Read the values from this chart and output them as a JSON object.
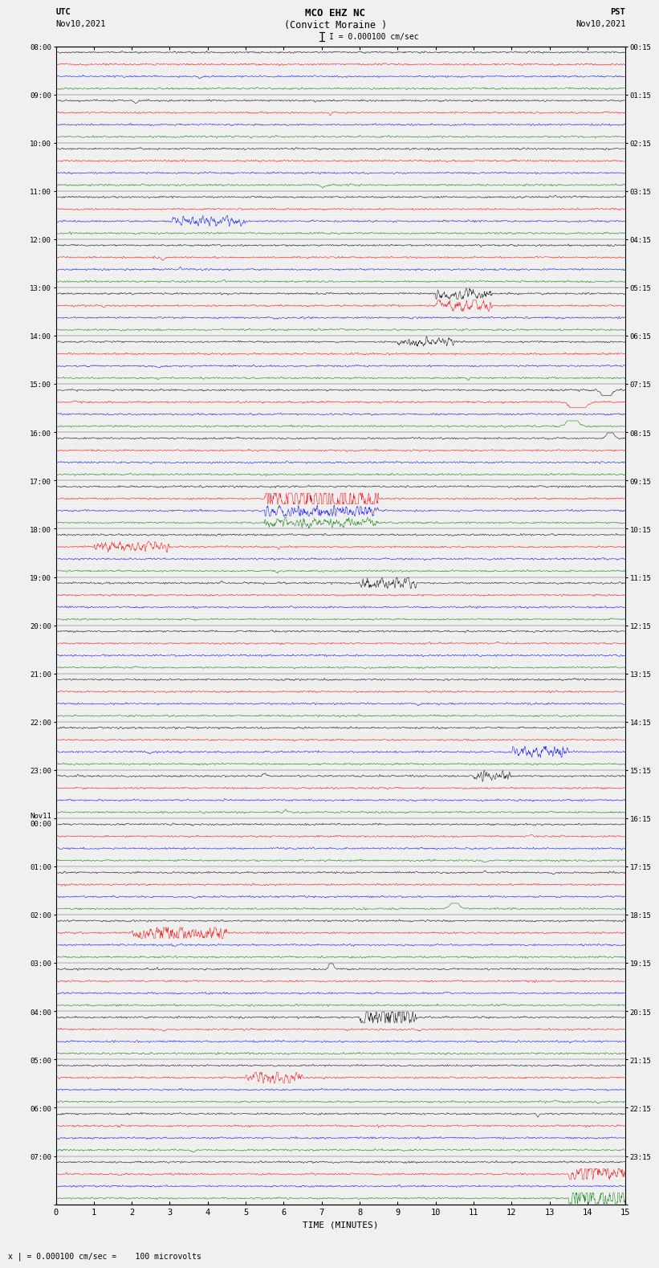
{
  "title_line1": "MCO EHZ NC",
  "title_line2": "(Convict Moraine )",
  "scale_label": "I = 0.000100 cm/sec",
  "bottom_label": "x | = 0.000100 cm/sec =    100 microvolts",
  "xlabel": "TIME (MINUTES)",
  "utc_label_line1": "UTC",
  "utc_label_line2": "Nov10,2021",
  "pst_label_line1": "PST",
  "pst_label_line2": "Nov10,2021",
  "left_times": [
    "08:00",
    "",
    "",
    "",
    "09:00",
    "",
    "",
    "",
    "10:00",
    "",
    "",
    "",
    "11:00",
    "",
    "",
    "",
    "12:00",
    "",
    "",
    "",
    "13:00",
    "",
    "",
    "",
    "14:00",
    "",
    "",
    "",
    "15:00",
    "",
    "",
    "",
    "16:00",
    "",
    "",
    "",
    "17:00",
    "",
    "",
    "",
    "18:00",
    "",
    "",
    "",
    "19:00",
    "",
    "",
    "",
    "20:00",
    "",
    "",
    "",
    "21:00",
    "",
    "",
    "",
    "22:00",
    "",
    "",
    "",
    "23:00",
    "",
    "",
    "",
    "Nov11\n00:00",
    "",
    "",
    "",
    "01:00",
    "",
    "",
    "",
    "02:00",
    "",
    "",
    "",
    "03:00",
    "",
    "",
    "",
    "04:00",
    "",
    "",
    "",
    "05:00",
    "",
    "",
    "",
    "06:00",
    "",
    "",
    "",
    "07:00",
    "",
    "",
    ""
  ],
  "right_times": [
    "00:15",
    "",
    "",
    "",
    "01:15",
    "",
    "",
    "",
    "02:15",
    "",
    "",
    "",
    "03:15",
    "",
    "",
    "",
    "04:15",
    "",
    "",
    "",
    "05:15",
    "",
    "",
    "",
    "06:15",
    "",
    "",
    "",
    "07:15",
    "",
    "",
    "",
    "08:15",
    "",
    "",
    "",
    "09:15",
    "",
    "",
    "",
    "10:15",
    "",
    "",
    "",
    "11:15",
    "",
    "",
    "",
    "12:15",
    "",
    "",
    "",
    "13:15",
    "",
    "",
    "",
    "14:15",
    "",
    "",
    "",
    "15:15",
    "",
    "",
    "",
    "16:15",
    "",
    "",
    "",
    "17:15",
    "",
    "",
    "",
    "18:15",
    "",
    "",
    "",
    "19:15",
    "",
    "",
    "",
    "20:15",
    "",
    "",
    "",
    "21:15",
    "",
    "",
    "",
    "22:15",
    "",
    "",
    "",
    "23:15",
    "",
    "",
    ""
  ],
  "trace_colors": [
    "black",
    "red",
    "blue",
    "green"
  ],
  "n_hours": 24,
  "traces_per_hour": 4,
  "xmin": 0,
  "xmax": 15,
  "bg_color": "#f0f0f0",
  "plot_bg_color": "#f0f0f0",
  "trace_lw": 0.35,
  "noise_amplitude": 0.06,
  "fig_width": 8.5,
  "fig_height": 16.13,
  "seed": 42,
  "special_events": [
    {
      "hour": 9,
      "cidx": 1,
      "t0": 5.5,
      "t1": 8.5,
      "amp": 1.8,
      "type": "burst"
    },
    {
      "hour": 9,
      "cidx": 2,
      "t0": 5.5,
      "t1": 8.5,
      "amp": 0.6,
      "type": "burst"
    },
    {
      "hour": 9,
      "cidx": 3,
      "t0": 5.5,
      "t1": 8.5,
      "amp": 0.4,
      "type": "burst"
    },
    {
      "hour": 7,
      "cidx": 3,
      "t0": 13.0,
      "t1": 14.2,
      "amp": 0.8,
      "type": "spike"
    },
    {
      "hour": 7,
      "cidx": 1,
      "t0": 13.0,
      "t1": 14.5,
      "amp": 1.2,
      "type": "spike"
    },
    {
      "hour": 7,
      "cidx": 0,
      "t0": 14.0,
      "t1": 15.0,
      "amp": 0.9,
      "type": "spike"
    },
    {
      "hour": 8,
      "cidx": 0,
      "t0": 14.2,
      "t1": 15.0,
      "amp": 0.7,
      "type": "spike"
    },
    {
      "hour": 5,
      "cidx": 0,
      "t0": 10.0,
      "t1": 11.5,
      "amp": 0.5,
      "type": "burst"
    },
    {
      "hour": 5,
      "cidx": 1,
      "t0": 10.0,
      "t1": 11.5,
      "amp": 0.5,
      "type": "burst"
    },
    {
      "hour": 11,
      "cidx": 0,
      "t0": 8.0,
      "t1": 9.5,
      "amp": 0.5,
      "type": "burst"
    },
    {
      "hour": 14,
      "cidx": 2,
      "t0": 12.0,
      "t1": 13.5,
      "amp": 0.6,
      "type": "burst"
    },
    {
      "hour": 17,
      "cidx": 3,
      "t0": 10.0,
      "t1": 11.0,
      "amp": 0.7,
      "type": "spike"
    },
    {
      "hour": 18,
      "cidx": 1,
      "t0": 2.0,
      "t1": 4.5,
      "amp": 0.8,
      "type": "burst"
    },
    {
      "hour": 20,
      "cidx": 0,
      "t0": 8.0,
      "t1": 9.5,
      "amp": 1.0,
      "type": "burst"
    },
    {
      "hour": 23,
      "cidx": 3,
      "t0": 13.5,
      "t1": 15.0,
      "amp": 1.2,
      "type": "burst"
    },
    {
      "hour": 23,
      "cidx": 1,
      "t0": 13.5,
      "t1": 15.0,
      "amp": 0.8,
      "type": "burst"
    },
    {
      "hour": 6,
      "cidx": 0,
      "t0": 9.0,
      "t1": 10.5,
      "amp": 0.4,
      "type": "burst"
    },
    {
      "hour": 15,
      "cidx": 0,
      "t0": 11.0,
      "t1": 12.0,
      "amp": 0.5,
      "type": "burst"
    },
    {
      "hour": 21,
      "cidx": 1,
      "t0": 5.0,
      "t1": 6.5,
      "amp": 0.6,
      "type": "burst"
    },
    {
      "hour": 3,
      "cidx": 2,
      "t0": 3.0,
      "t1": 5.0,
      "amp": 0.4,
      "type": "burst"
    },
    {
      "hour": 10,
      "cidx": 1,
      "t0": 1.0,
      "t1": 3.0,
      "amp": 0.5,
      "type": "burst"
    },
    {
      "hour": 19,
      "cidx": 0,
      "t0": 7.0,
      "t1": 7.5,
      "amp": 0.7,
      "type": "spike"
    }
  ]
}
